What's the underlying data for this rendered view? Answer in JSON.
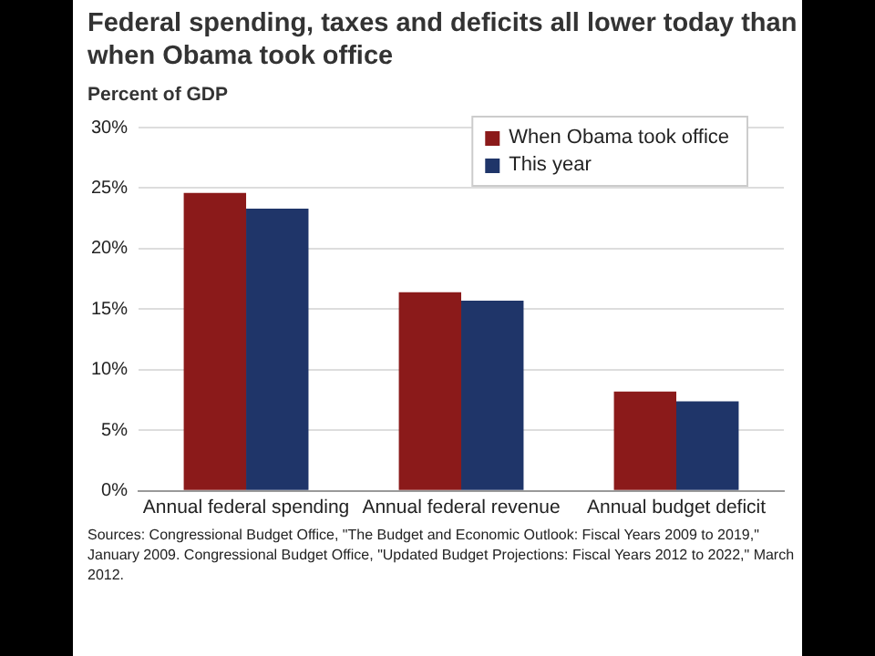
{
  "chart_data": {
    "type": "bar",
    "title": "Federal spending, taxes and deficits all lower today than when Obama took office",
    "ylabel": "Percent of GDP",
    "categories": [
      "Annual federal spending",
      "Annual federal revenue",
      "Annual budget deficit"
    ],
    "series": [
      {
        "name": "When Obama took office",
        "color": "#8b1a1a",
        "values": [
          24.6,
          16.4,
          8.2
        ]
      },
      {
        "name": "This year",
        "color": "#1f3569",
        "values": [
          23.3,
          15.7,
          7.4
        ]
      }
    ],
    "ylim": [
      0,
      30
    ],
    "yticks": [
      {
        "value": 0,
        "label": "0%"
      },
      {
        "value": 5,
        "label": "5%"
      },
      {
        "value": 10,
        "label": "10%"
      },
      {
        "value": 15,
        "label": "15%"
      },
      {
        "value": 20,
        "label": "20%"
      },
      {
        "value": 25,
        "label": "25%"
      },
      {
        "value": 30,
        "label": "30%"
      }
    ],
    "grid": "y",
    "legend": "top right",
    "annotations": [
      "Sources:  Congressional Budget Office, \"The Budget and Economic Outlook: Fiscal Years 2009 to 2019,\" January 2009. Congressional Budget Office,  \"Updated Budget Projections: Fiscal Years 2012 to 2022,\" March 2012."
    ]
  }
}
